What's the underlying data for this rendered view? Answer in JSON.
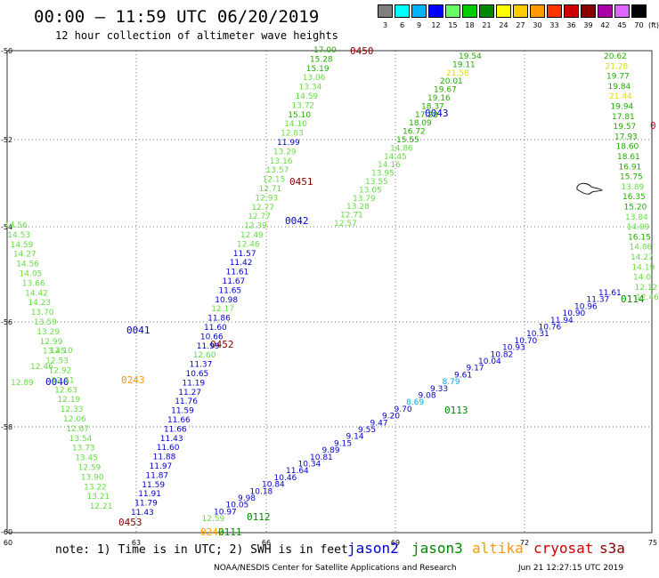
{
  "header": {
    "title": "00:00 – 11:59 UTC 06/20/2019",
    "subtitle": "12 hour collection of altimeter wave heights"
  },
  "legend": {
    "unit": "(ft)",
    "items": [
      {
        "label": "3",
        "color": "#7f7f7f"
      },
      {
        "label": "6",
        "color": "#00ffff"
      },
      {
        "label": "9",
        "color": "#00b4ff"
      },
      {
        "label": "12",
        "color": "#0000ff"
      },
      {
        "label": "15",
        "color": "#66ff66"
      },
      {
        "label": "18",
        "color": "#00cc00"
      },
      {
        "label": "21",
        "color": "#008800"
      },
      {
        "label": "24",
        "color": "#ffff00"
      },
      {
        "label": "27",
        "color": "#ffcc00"
      },
      {
        "label": "30",
        "color": "#ff9900"
      },
      {
        "label": "33",
        "color": "#ff3300"
      },
      {
        "label": "36",
        "color": "#cc0000"
      },
      {
        "label": "39",
        "color": "#880000"
      },
      {
        "label": "42",
        "color": "#aa00aa"
      },
      {
        "label": "45",
        "color": "#dd66ff"
      },
      {
        "label": "70",
        "color": "#000000"
      }
    ]
  },
  "axes": {
    "lat_labels": [
      "-50",
      "-52",
      "-54",
      "-56",
      "-58",
      "-60"
    ],
    "lon_labels": [
      "60",
      "63",
      "66",
      "69",
      "72",
      "75"
    ]
  },
  "colors": {
    "jason2": "#0000cc",
    "jason3": "#008800",
    "altika": "#ff9900",
    "cryosat": "#cc0000",
    "s3a": "#880000",
    "light_green": "#66dd44",
    "mid_green": "#22aa00",
    "cyan": "#00aadd",
    "yellow": "#dddd00"
  },
  "times": {
    "t0450": "0450",
    "t0043": "0043",
    "t0451": "0451",
    "t0042": "0042",
    "t0041": "0041",
    "t0452": "0452",
    "t0040": "0040",
    "t0243": "0243",
    "t0113": "0113",
    "t0114": "0114",
    "t0453": "0453",
    "t0112": "0112",
    "t0111": "0111",
    "t0242": "0242",
    "t0_edge": "0"
  },
  "tracks": {
    "track_a": [
      "17.00",
      "15.28",
      "15.19",
      "13.06",
      "13.34",
      "14.59",
      "13.72",
      "15.10",
      "14.10",
      "12.83",
      "11.99",
      "13.29",
      "13.16",
      "13.57",
      "12.15",
      "12.71",
      "12.93",
      "12.77",
      "12.77",
      "12.39",
      "12.49",
      "12.46",
      "11.57",
      "11.42",
      "11.61",
      "11.67",
      "11.65",
      "10.98",
      "12.17",
      "11.86",
      "11.60",
      "10.66",
      "11.99",
      "12.60",
      "11.37",
      "10.65",
      "11.19",
      "11.27",
      "11.76",
      "11.59",
      "11.66",
      "11.66",
      "11.43",
      "11.60",
      "11.88",
      "11.97",
      "11.87",
      "11.59",
      "11.91",
      "11.79",
      "11.43"
    ],
    "track_b": [
      "19.54",
      "19.11",
      "21.58",
      "20.01",
      "19.67",
      "19.16",
      "18.37",
      "17.28",
      "18.09",
      "16.72",
      "15.55",
      "14.86",
      "14.45",
      "14.16",
      "13.95",
      "13.55",
      "13.05",
      "13.79",
      "13.28",
      "12.71",
      "12.57"
    ],
    "track_c": [
      "14.56",
      "14.53",
      "14.59",
      "14.27",
      "14.56",
      "14.05",
      "13.66",
      "14.42",
      "14.23",
      "13.70",
      "13.59",
      "13.29",
      "12.99",
      "13.45",
      "12.53",
      "12.92",
      "12.51",
      "12.63",
      "12.19",
      "12.33",
      "12.06",
      "12.67",
      "13.54",
      "13.73",
      "13.45",
      "12.59",
      "13.90",
      "13.22",
      "13.21",
      "12.21"
    ],
    "track_d": [
      "12.89",
      "12.46",
      "12.10"
    ],
    "track_e": [
      "20.62",
      "21.28",
      "19.77",
      "19.84",
      "21.44",
      "19.94",
      "17.81",
      "19.57",
      "17.93",
      "18.60",
      "18.61",
      "16.91",
      "15.75",
      "13.89",
      "16.35",
      "15.20",
      "13.84",
      "14.09",
      "16.15",
      "14.86",
      "14.27",
      "14.19",
      "14.0",
      "12.12",
      "12.46"
    ],
    "track_f": [
      "11.61",
      "11.37",
      "10.96",
      "10.90",
      "11.94",
      "10.76",
      "10.31",
      "10.70",
      "10.93",
      "10.82",
      "10.04",
      "9.17",
      "9.61",
      "8.79",
      "9.33",
      "9.08",
      "8.69",
      "9.70",
      "9.20",
      "9.47",
      "9.55",
      "9.14",
      "9.15",
      "9.89",
      "10.81",
      "10.34",
      "11.64",
      "10.46",
      "10.84",
      "10.18",
      "9.98",
      "10.05",
      "10.97",
      "12.59"
    ]
  },
  "footer": {
    "note": "note: 1) Time is in UTC; 2) SWH is in feet",
    "jason2": "jason2",
    "jason3": "jason3",
    "altika": "altika",
    "cryosat": "cryosat",
    "s3a": "s3a",
    "credit": "NOAA/NESDIS Center for Satellite Applications and Research",
    "timestamp": "Jun 21 12:27:15 UTC 2019"
  }
}
